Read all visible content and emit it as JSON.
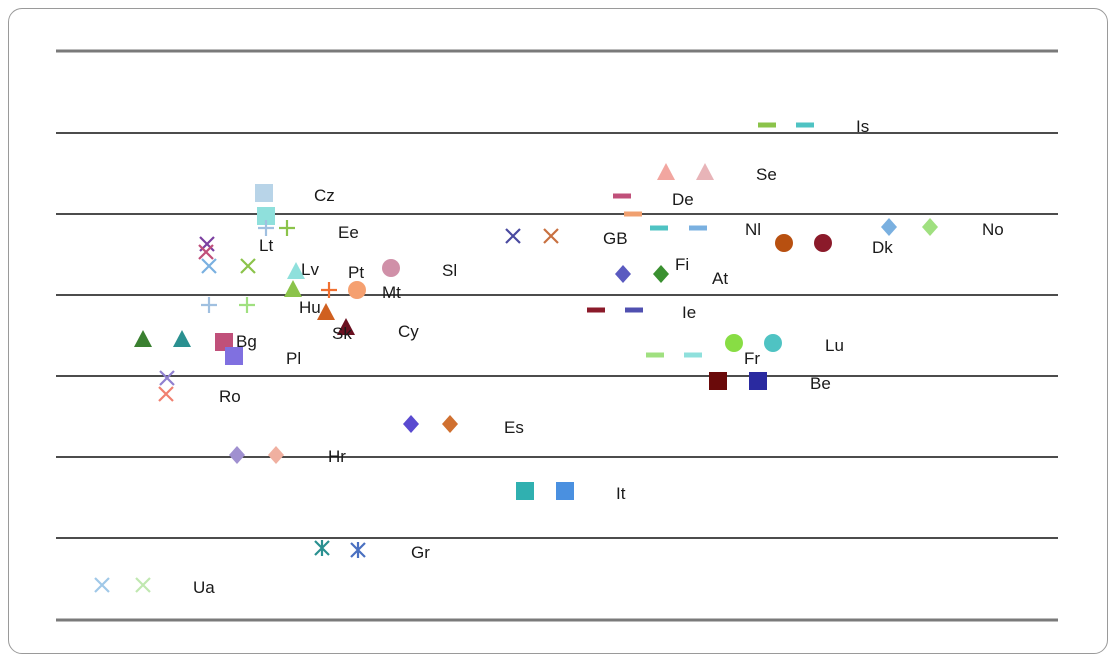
{
  "chart_data": {
    "type": "scatter",
    "title": "",
    "xlabel": "",
    "ylabel": "",
    "grid": "horizontal lines",
    "legend": "none",
    "countries": [
      {
        "code": "Is",
        "marker": "dash",
        "points": [
          {
            "color": "#8bc34a"
          },
          {
            "color": "#4fc3c3"
          }
        ]
      },
      {
        "code": "Se",
        "marker": "triangle",
        "points": [
          {
            "color": "#f2a6a0"
          },
          {
            "color": "#e8b4b8"
          }
        ]
      },
      {
        "code": "Cz",
        "marker": "square",
        "points": [
          {
            "color": "#b8d4e8"
          },
          {
            "color": "#8fe0dc"
          }
        ]
      },
      {
        "code": "De",
        "marker": "dash",
        "points": [
          {
            "color": "#c0507a"
          },
          {
            "color": "#f0a070"
          }
        ]
      },
      {
        "code": "Ee",
        "marker": "plus",
        "points": [
          {
            "color": "#a0c0e0"
          },
          {
            "color": "#8bc34a"
          }
        ]
      },
      {
        "code": "Lt",
        "marker": "x",
        "points": [
          {
            "color": "#7b3fa0"
          },
          {
            "color": "#c0507a"
          }
        ]
      },
      {
        "code": "GB",
        "marker": "x",
        "points": [
          {
            "color": "#4a4aa0"
          },
          {
            "color": "#c87040"
          }
        ]
      },
      {
        "code": "Nl",
        "marker": "dash",
        "points": [
          {
            "color": "#4fc3c3"
          },
          {
            "color": "#7ab0e0"
          }
        ]
      },
      {
        "code": "Dk",
        "marker": "circle",
        "points": [
          {
            "color": "#b85010"
          },
          {
            "color": "#8b1a2a"
          }
        ]
      },
      {
        "code": "No",
        "marker": "diamond",
        "points": [
          {
            "color": "#7ab0e0"
          },
          {
            "color": "#a0e080"
          }
        ]
      },
      {
        "code": "Lv",
        "marker": "x",
        "points": [
          {
            "color": "#7ab0e0"
          },
          {
            "color": "#8bc34a"
          }
        ]
      },
      {
        "code": "Pt",
        "marker": "triangle",
        "points": [
          {
            "color": "#8fe0dc"
          },
          {
            "color": "#8bc34a"
          }
        ]
      },
      {
        "code": "Sl",
        "marker": "circle",
        "points": [
          {
            "color": "#d090a8"
          }
        ]
      },
      {
        "code": "Mt",
        "marker": "mixed",
        "points": [
          {
            "color": "#f07030"
          },
          {
            "color": "#f5a070"
          }
        ]
      },
      {
        "code": "Fi",
        "marker": "diamond",
        "points": [
          {
            "color": "#5a5ac0"
          },
          {
            "color": "#3a9030"
          }
        ]
      },
      {
        "code": "At",
        "marker": "none",
        "points": []
      },
      {
        "code": "Hu",
        "marker": "plus",
        "points": [
          {
            "color": "#a0c0e0"
          },
          {
            "color": "#a0e080"
          }
        ]
      },
      {
        "code": "Ie",
        "marker": "dash",
        "points": [
          {
            "color": "#8b1a2a"
          },
          {
            "color": "#5050b0"
          }
        ]
      },
      {
        "code": "Sk",
        "marker": "triangle",
        "points": [
          {
            "color": "#d06020"
          },
          {
            "color": "#6a1020"
          }
        ]
      },
      {
        "code": "Cy",
        "marker": "none",
        "points": []
      },
      {
        "code": "Bg",
        "marker": "triangle",
        "points": [
          {
            "color": "#3a8030"
          },
          {
            "color": "#2a9090"
          }
        ]
      },
      {
        "code": "Pl",
        "marker": "square",
        "points": [
          {
            "color": "#c0507a"
          },
          {
            "color": "#8070e0"
          }
        ]
      },
      {
        "code": "Lu",
        "marker": "circle",
        "points": [
          {
            "color": "#88dd44"
          },
          {
            "color": "#4fc3c3"
          }
        ]
      },
      {
        "code": "Fr",
        "marker": "dash",
        "points": [
          {
            "color": "#a0e080"
          },
          {
            "color": "#8fe0dc"
          }
        ]
      },
      {
        "code": "Ro",
        "marker": "x",
        "points": [
          {
            "color": "#9080d0"
          },
          {
            "color": "#f08070"
          }
        ]
      },
      {
        "code": "Be",
        "marker": "square",
        "points": [
          {
            "color": "#6a0a0a"
          },
          {
            "color": "#2a2aa0"
          }
        ]
      },
      {
        "code": "Es",
        "marker": "diamond",
        "points": [
          {
            "color": "#5a4ad0"
          },
          {
            "color": "#d07030"
          }
        ]
      },
      {
        "code": "Hr",
        "marker": "diamond",
        "points": [
          {
            "color": "#a090d0"
          },
          {
            "color": "#f0b0a0"
          }
        ]
      },
      {
        "code": "It",
        "marker": "square",
        "points": [
          {
            "color": "#30b0b0"
          },
          {
            "color": "#4a90e0"
          }
        ]
      },
      {
        "code": "Gr",
        "marker": "asterisk",
        "points": [
          {
            "color": "#2a9090"
          },
          {
            "color": "#4a70c0"
          }
        ]
      },
      {
        "code": "Ua",
        "marker": "x",
        "points": [
          {
            "color": "#a0c8e8"
          },
          {
            "color": "#c0e8b0"
          }
        ]
      }
    ]
  }
}
